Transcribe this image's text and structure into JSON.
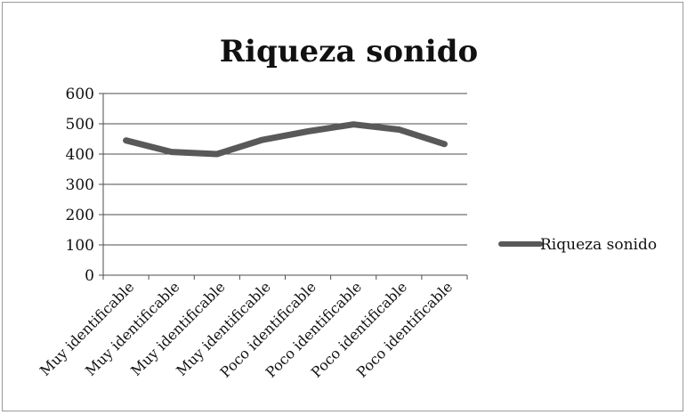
{
  "chart_data": {
    "type": "line",
    "title": "Riqueza sonido",
    "xlabel": "",
    "ylabel": "",
    "categories": [
      "Muy identificable",
      "Muy identificable",
      "Muy identificable",
      "Muy identificable",
      "Poco identificable",
      "Poco identificable",
      "Poco identificable",
      "Poco identificable"
    ],
    "series": [
      {
        "name": "Riqueza sonido",
        "values": [
          445,
          407,
          400,
          447,
          475,
          498,
          481,
          433
        ],
        "color": "#595959"
      }
    ],
    "ylim": [
      0,
      600
    ],
    "yticks": [
      "0",
      "100",
      "200",
      "300",
      "400",
      "500",
      "600"
    ],
    "grid": true,
    "legend": "right"
  }
}
